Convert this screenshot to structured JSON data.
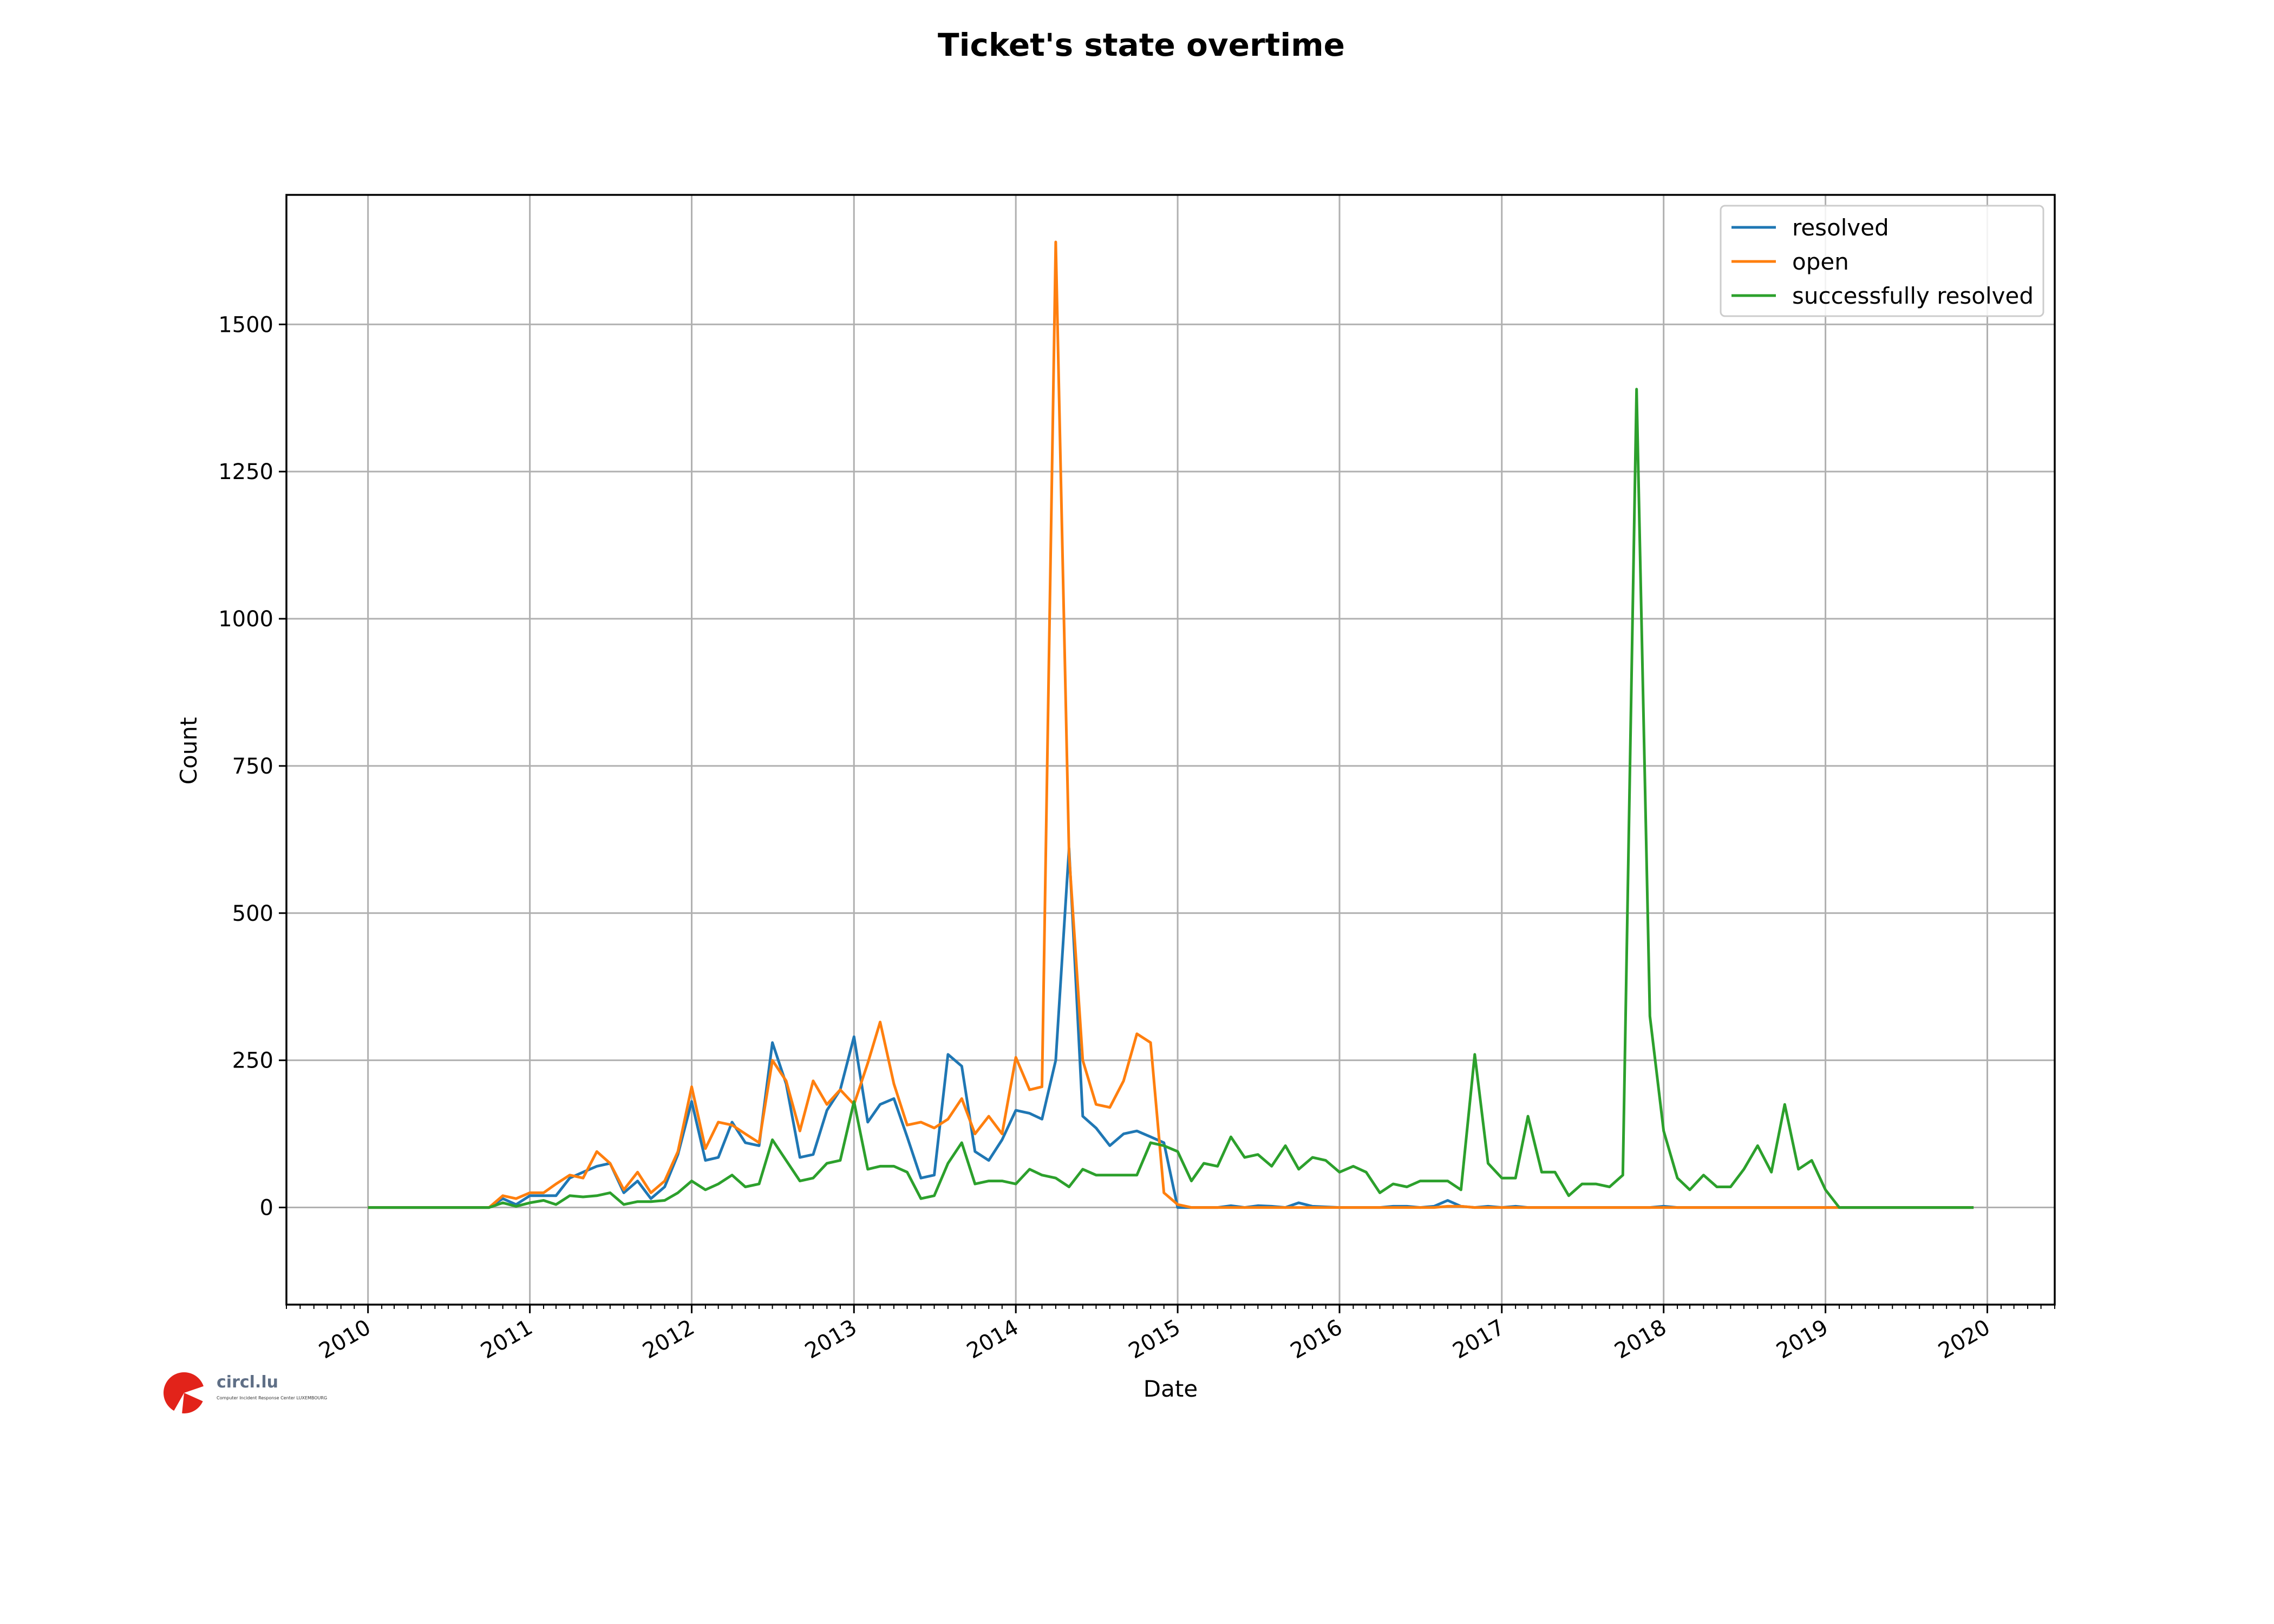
{
  "chart_data": {
    "type": "line",
    "title": "Ticket's state overtime",
    "xlabel": "Date",
    "ylabel": "Count",
    "ylim": [
      -165,
      1720
    ],
    "xlim": [
      "2009-07-01",
      "2020-06-01"
    ],
    "yticks": [
      0,
      250,
      500,
      750,
      1000,
      1250,
      1500
    ],
    "xticks": [
      "2010",
      "2011",
      "2012",
      "2013",
      "2014",
      "2015",
      "2016",
      "2017",
      "2018",
      "2019",
      "2020"
    ],
    "grid": true,
    "legend_position": "top-right",
    "x": [
      "2010-01",
      "2010-02",
      "2010-03",
      "2010-04",
      "2010-05",
      "2010-06",
      "2010-07",
      "2010-08",
      "2010-09",
      "2010-10",
      "2010-11",
      "2010-12",
      "2011-01",
      "2011-02",
      "2011-03",
      "2011-04",
      "2011-05",
      "2011-06",
      "2011-07",
      "2011-08",
      "2011-09",
      "2011-10",
      "2011-11",
      "2011-12",
      "2012-01",
      "2012-02",
      "2012-03",
      "2012-04",
      "2012-05",
      "2012-06",
      "2012-07",
      "2012-08",
      "2012-09",
      "2012-10",
      "2012-11",
      "2012-12",
      "2013-01",
      "2013-02",
      "2013-03",
      "2013-04",
      "2013-05",
      "2013-06",
      "2013-07",
      "2013-08",
      "2013-09",
      "2013-10",
      "2013-11",
      "2013-12",
      "2014-01",
      "2014-02",
      "2014-03",
      "2014-04",
      "2014-05",
      "2014-06",
      "2014-07",
      "2014-08",
      "2014-09",
      "2014-10",
      "2014-11",
      "2014-12",
      "2015-01",
      "2015-02",
      "2015-03",
      "2015-04",
      "2015-05",
      "2015-06",
      "2015-07",
      "2015-08",
      "2015-09",
      "2015-10",
      "2015-11",
      "2015-12",
      "2016-01",
      "2016-02",
      "2016-03",
      "2016-04",
      "2016-05",
      "2016-06",
      "2016-07",
      "2016-08",
      "2016-09",
      "2016-10",
      "2016-11",
      "2016-12",
      "2017-01",
      "2017-02",
      "2017-03",
      "2017-04",
      "2017-05",
      "2017-06",
      "2017-07",
      "2017-08",
      "2017-09",
      "2017-10",
      "2017-11",
      "2017-12",
      "2018-01",
      "2018-02",
      "2018-03",
      "2018-04",
      "2018-05",
      "2018-06",
      "2018-07",
      "2018-08",
      "2018-09",
      "2018-10",
      "2018-11",
      "2018-12",
      "2019-01",
      "2019-02",
      "2019-03",
      "2019-04",
      "2019-05",
      "2019-06",
      "2019-07",
      "2019-08",
      "2019-09",
      "2019-10",
      "2019-11",
      "2019-12"
    ],
    "series": [
      {
        "name": "resolved",
        "color": "#1f77b4",
        "values": [
          0,
          0,
          0,
          0,
          0,
          0,
          0,
          0,
          0,
          0,
          15,
          5,
          20,
          20,
          20,
          50,
          60,
          70,
          75,
          25,
          45,
          15,
          35,
          90,
          180,
          80,
          85,
          145,
          110,
          105,
          280,
          210,
          85,
          90,
          165,
          200,
          290,
          145,
          175,
          185,
          120,
          50,
          55,
          260,
          240,
          95,
          80,
          115,
          165,
          160,
          150,
          250,
          610,
          155,
          135,
          105,
          125,
          130,
          120,
          110,
          0,
          0,
          0,
          0,
          3,
          0,
          3,
          2,
          0,
          8,
          2,
          1,
          0,
          0,
          0,
          0,
          2,
          2,
          0,
          2,
          12,
          2,
          0,
          2,
          0,
          2,
          0,
          0,
          0,
          0,
          0,
          0,
          0,
          0,
          0,
          0,
          2,
          0,
          0,
          0,
          0,
          0,
          0,
          0,
          0,
          0,
          0,
          0,
          0,
          0,
          0,
          0,
          0,
          0,
          0,
          0,
          0,
          0,
          0,
          0
        ]
      },
      {
        "name": "open",
        "color": "#ff7f0e",
        "values": [
          0,
          0,
          0,
          0,
          0,
          0,
          0,
          0,
          0,
          0,
          20,
          15,
          25,
          25,
          40,
          55,
          50,
          95,
          75,
          30,
          60,
          25,
          45,
          95,
          205,
          100,
          145,
          140,
          125,
          110,
          250,
          215,
          130,
          215,
          175,
          200,
          175,
          245,
          315,
          210,
          140,
          145,
          135,
          150,
          185,
          125,
          155,
          125,
          255,
          200,
          205,
          1640,
          600,
          250,
          175,
          170,
          215,
          295,
          280,
          25,
          5,
          0,
          0,
          0,
          0,
          0,
          0,
          0,
          0,
          0,
          0,
          0,
          0,
          0,
          0,
          0,
          0,
          0,
          0,
          0,
          2,
          2,
          0,
          0,
          0,
          0,
          0,
          0,
          0,
          0,
          0,
          0,
          0,
          0,
          0,
          0,
          0,
          0,
          0,
          0,
          0,
          0,
          0,
          0,
          0,
          0,
          0,
          0,
          0,
          0,
          0,
          0,
          0,
          0,
          0,
          0,
          0,
          0,
          0,
          0
        ]
      },
      {
        "name": "successfully resolved",
        "color": "#2ca02c",
        "values": [
          0,
          0,
          0,
          0,
          0,
          0,
          0,
          0,
          0,
          0,
          8,
          2,
          8,
          12,
          5,
          20,
          18,
          20,
          25,
          5,
          10,
          10,
          12,
          25,
          45,
          30,
          40,
          55,
          35,
          40,
          115,
          80,
          45,
          50,
          75,
          80,
          180,
          65,
          70,
          70,
          60,
          15,
          20,
          75,
          110,
          40,
          45,
          45,
          40,
          65,
          55,
          50,
          35,
          65,
          55,
          55,
          55,
          55,
          110,
          105,
          95,
          45,
          75,
          70,
          120,
          85,
          90,
          70,
          105,
          65,
          85,
          80,
          60,
          70,
          60,
          25,
          40,
          35,
          45,
          45,
          45,
          30,
          260,
          75,
          50,
          50,
          155,
          60,
          60,
          20,
          40,
          40,
          35,
          55,
          1390,
          325,
          130,
          50,
          30,
          55,
          35,
          35,
          65,
          105,
          60,
          175,
          65,
          80,
          30,
          0,
          0,
          0,
          0,
          0,
          0,
          0,
          0,
          0,
          0,
          0
        ]
      }
    ]
  },
  "logo": {
    "text": "circl.lu",
    "subtext": "Computer Incident Response Center LUXEMBOURG"
  }
}
